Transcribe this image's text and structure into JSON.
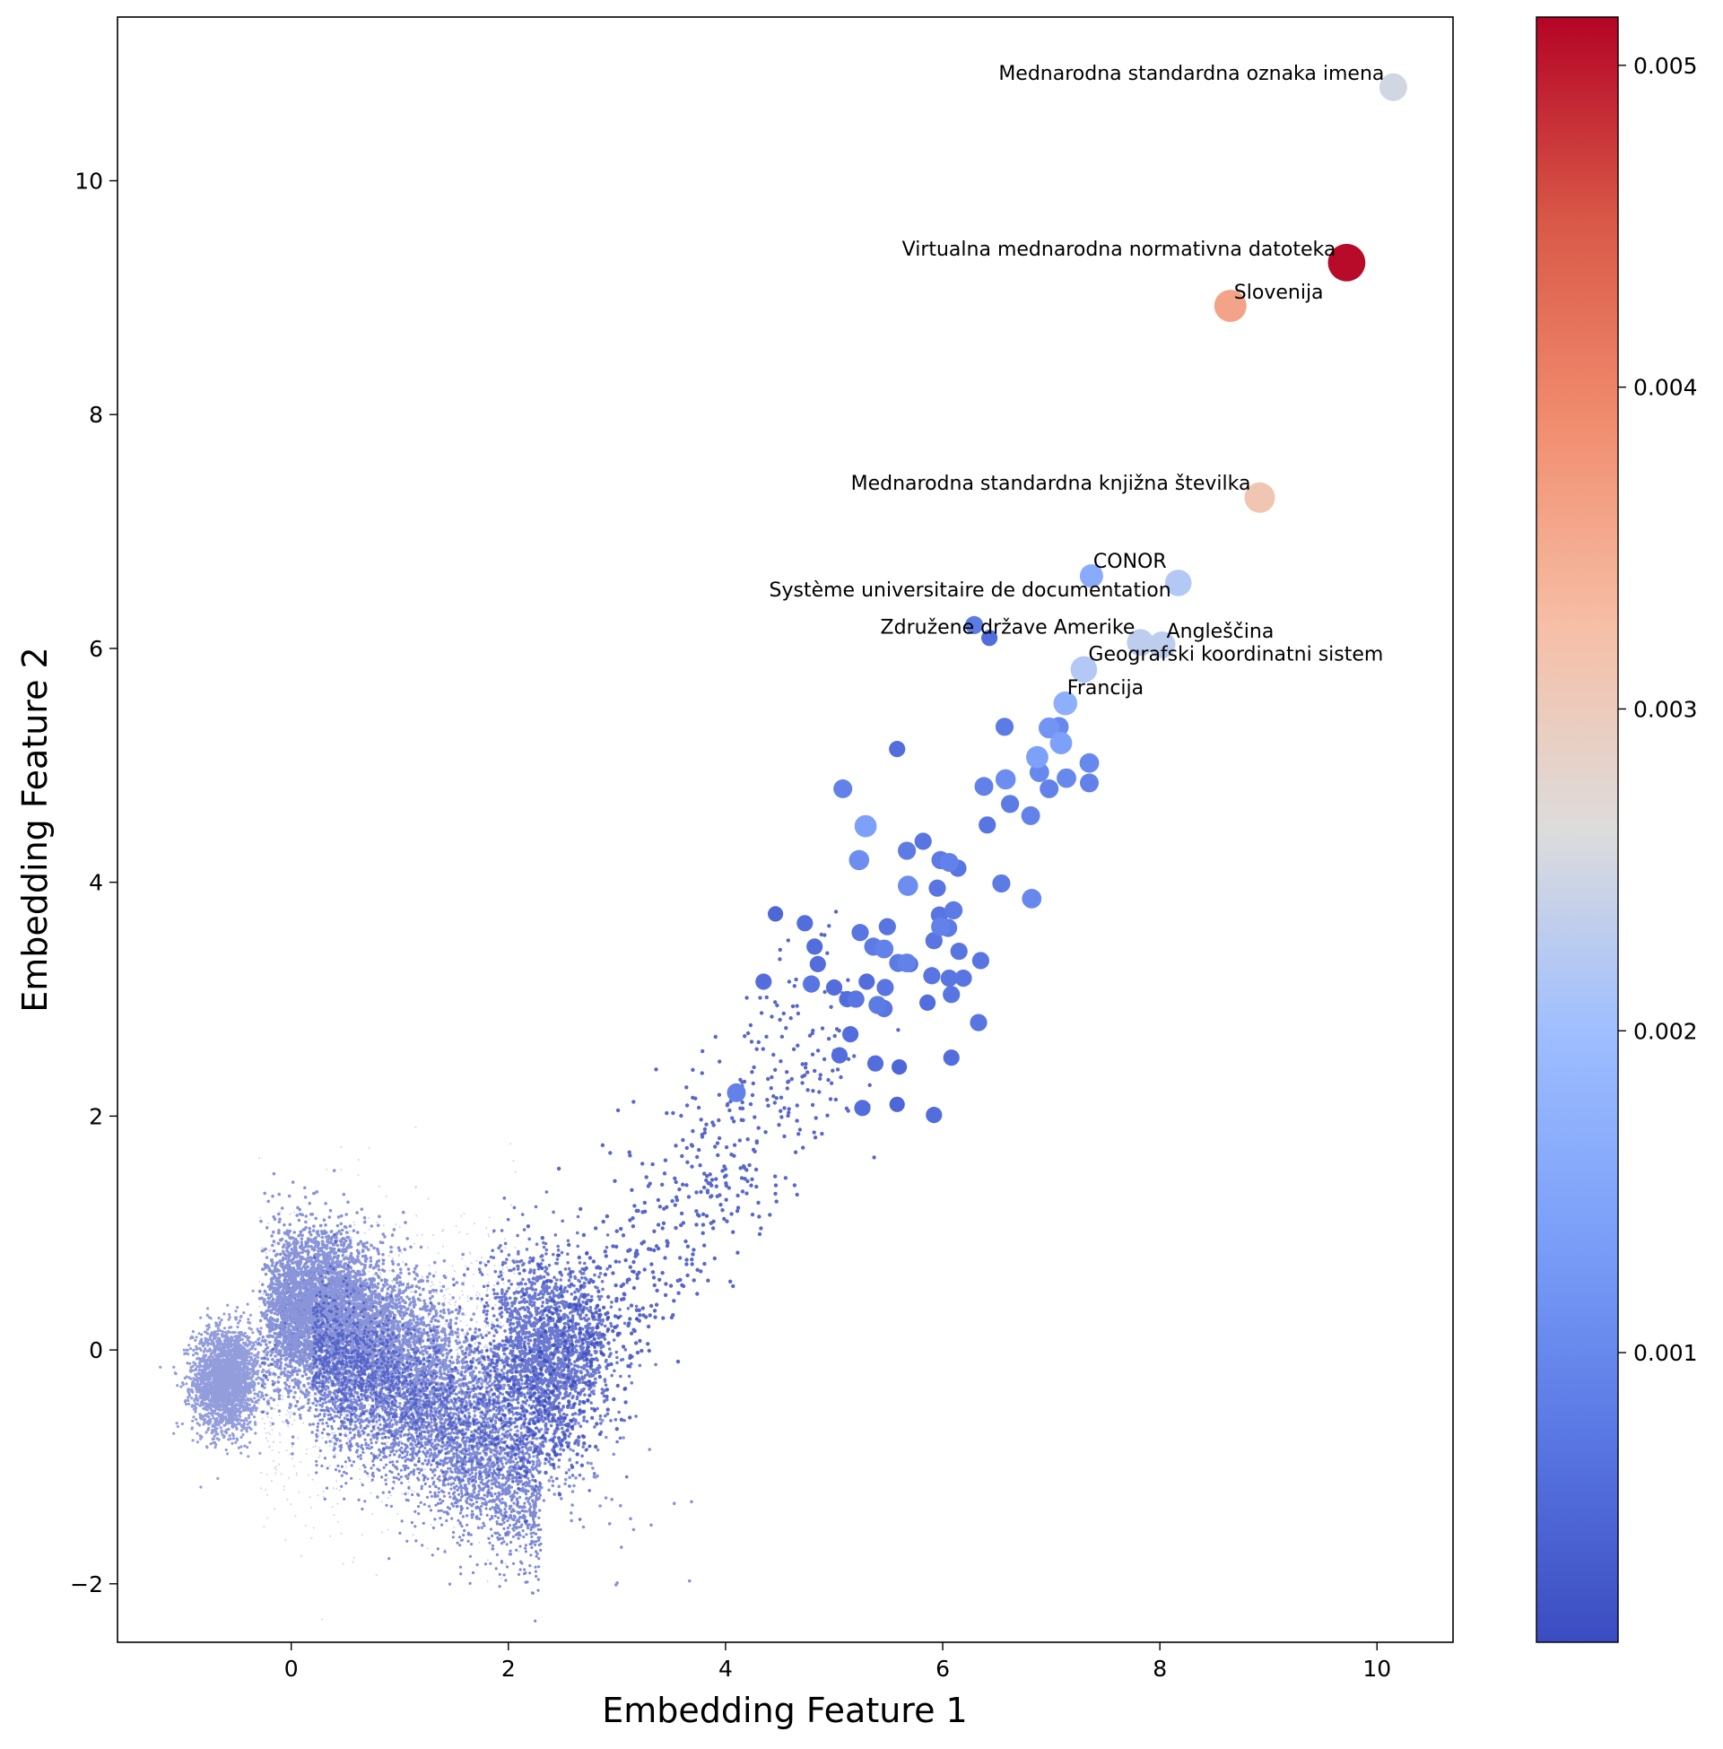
{
  "chart_data": {
    "type": "scatter",
    "xlabel": "Embedding Feature 1",
    "ylabel": "Embedding Feature 2",
    "xlim": [
      -1.6,
      10.7
    ],
    "ylim": [
      -2.5,
      11.4
    ],
    "xticks": [
      0,
      2,
      4,
      6,
      8,
      10
    ],
    "yticks": [
      -2,
      0,
      2,
      4,
      6,
      8,
      10
    ],
    "xtick_labels": [
      "0",
      "2",
      "4",
      "6",
      "8",
      "10"
    ],
    "ytick_labels": [
      "−2",
      "0",
      "2",
      "4",
      "6",
      "8",
      "10"
    ],
    "grid": false,
    "colormap": "coolwarm",
    "colorbar": {
      "label": "",
      "range": [
        0.0001,
        0.00515
      ],
      "ticks": [
        0.001,
        0.002,
        0.003,
        0.004,
        0.005
      ],
      "tick_labels": [
        "0.001",
        "0.002",
        "0.003",
        "0.004",
        "0.005"
      ]
    },
    "background_cloud_color": "#3b4cc0",
    "annotated_points": [
      {
        "label": "Mednarodna standardna oznaka imena",
        "x": 10.15,
        "y": 10.8,
        "value": 0.0025
      },
      {
        "label": "Virtualna mednarodna normativna datoteka",
        "x": 9.72,
        "y": 9.3,
        "value": 0.0051
      },
      {
        "label": "Slovenija",
        "x": 8.65,
        "y": 8.93,
        "value": 0.0036
      },
      {
        "label": "Mednarodna standardna knjižna številka",
        "x": 8.92,
        "y": 7.29,
        "value": 0.0031
      },
      {
        "label": "CONOR",
        "x": 7.37,
        "y": 6.62,
        "value": 0.0016
      },
      {
        "label": "Système universitaire de documentation",
        "x": 8.17,
        "y": 6.56,
        "value": 0.0022
      },
      {
        "label": "Združene države Amerike",
        "x": 7.82,
        "y": 6.05,
        "value": 0.0023
      },
      {
        "label": "Angleščina",
        "x": 8.02,
        "y": 6.03,
        "value": 0.0023
      },
      {
        "label": "Geografski koordinatni sistem",
        "x": 7.3,
        "y": 5.82,
        "value": 0.0022
      },
      {
        "label": "Francija",
        "x": 7.13,
        "y": 5.53,
        "value": 0.0017
      }
    ],
    "other_points": [
      {
        "x": 6.29,
        "y": 6.2,
        "value": 0.0008
      },
      {
        "x": 6.43,
        "y": 6.09,
        "value": 0.0006
      },
      {
        "x": 6.57,
        "y": 5.33,
        "value": 0.0008
      },
      {
        "x": 5.58,
        "y": 5.14,
        "value": 0.0006
      },
      {
        "x": 6.98,
        "y": 5.32,
        "value": 0.0012
      },
      {
        "x": 7.07,
        "y": 5.33,
        "value": 0.001
      },
      {
        "x": 7.09,
        "y": 5.19,
        "value": 0.0014
      },
      {
        "x": 6.87,
        "y": 5.07,
        "value": 0.0014
      },
      {
        "x": 7.35,
        "y": 5.02,
        "value": 0.001
      },
      {
        "x": 6.89,
        "y": 4.94,
        "value": 0.001
      },
      {
        "x": 6.58,
        "y": 4.88,
        "value": 0.0011
      },
      {
        "x": 7.14,
        "y": 4.89,
        "value": 0.001
      },
      {
        "x": 7.35,
        "y": 4.85,
        "value": 0.0009
      },
      {
        "x": 6.38,
        "y": 4.82,
        "value": 0.0009
      },
      {
        "x": 6.98,
        "y": 4.8,
        "value": 0.0009
      },
      {
        "x": 5.08,
        "y": 4.8,
        "value": 0.0009
      },
      {
        "x": 6.62,
        "y": 4.67,
        "value": 0.0008
      },
      {
        "x": 6.81,
        "y": 4.57,
        "value": 0.0009
      },
      {
        "x": 6.41,
        "y": 4.49,
        "value": 0.0007
      },
      {
        "x": 5.29,
        "y": 4.48,
        "value": 0.0014
      },
      {
        "x": 5.82,
        "y": 4.35,
        "value": 0.0007
      },
      {
        "x": 5.67,
        "y": 4.27,
        "value": 0.0008
      },
      {
        "x": 5.23,
        "y": 4.19,
        "value": 0.0011
      },
      {
        "x": 5.98,
        "y": 4.19,
        "value": 0.0008
      },
      {
        "x": 6.06,
        "y": 4.17,
        "value": 0.0009
      },
      {
        "x": 6.14,
        "y": 4.12,
        "value": 0.0007
      },
      {
        "x": 5.68,
        "y": 3.97,
        "value": 0.0011
      },
      {
        "x": 5.95,
        "y": 3.95,
        "value": 0.0007
      },
      {
        "x": 6.54,
        "y": 3.99,
        "value": 0.0008
      },
      {
        "x": 6.82,
        "y": 3.86,
        "value": 0.001
      },
      {
        "x": 6.1,
        "y": 3.76,
        "value": 0.0008
      },
      {
        "x": 5.97,
        "y": 3.72,
        "value": 0.0007
      },
      {
        "x": 5.98,
        "y": 3.62,
        "value": 0.0009
      },
      {
        "x": 6.05,
        "y": 3.61,
        "value": 0.0008
      },
      {
        "x": 5.49,
        "y": 3.62,
        "value": 0.0007
      },
      {
        "x": 5.24,
        "y": 3.57,
        "value": 0.0007
      },
      {
        "x": 5.92,
        "y": 3.5,
        "value": 0.0007
      },
      {
        "x": 5.36,
        "y": 3.45,
        "value": 0.0008
      },
      {
        "x": 5.46,
        "y": 3.43,
        "value": 0.0009
      },
      {
        "x": 6.15,
        "y": 3.41,
        "value": 0.0007
      },
      {
        "x": 5.59,
        "y": 3.31,
        "value": 0.0008
      },
      {
        "x": 5.67,
        "y": 3.31,
        "value": 0.0009
      },
      {
        "x": 6.35,
        "y": 3.33,
        "value": 0.0007
      },
      {
        "x": 5.9,
        "y": 3.2,
        "value": 0.0007
      },
      {
        "x": 6.06,
        "y": 3.18,
        "value": 0.0007
      },
      {
        "x": 6.19,
        "y": 3.18,
        "value": 0.0007
      },
      {
        "x": 5.47,
        "y": 3.1,
        "value": 0.0007
      },
      {
        "x": 4.79,
        "y": 3.13,
        "value": 0.0007
      },
      {
        "x": 6.08,
        "y": 3.04,
        "value": 0.0007
      },
      {
        "x": 5.2,
        "y": 3.0,
        "value": 0.0007
      },
      {
        "x": 5.4,
        "y": 2.95,
        "value": 0.0008
      },
      {
        "x": 5.46,
        "y": 2.92,
        "value": 0.0007
      },
      {
        "x": 6.33,
        "y": 2.8,
        "value": 0.0007
      },
      {
        "x": 4.1,
        "y": 2.2,
        "value": 0.0009
      },
      {
        "x": 5.26,
        "y": 2.07,
        "value": 0.0006
      },
      {
        "x": 5.92,
        "y": 2.01,
        "value": 0.0006
      },
      {
        "x": 5.58,
        "y": 2.1,
        "value": 0.0005
      },
      {
        "x": 6.08,
        "y": 2.5,
        "value": 0.0006
      },
      {
        "x": 4.35,
        "y": 3.15,
        "value": 0.0006
      },
      {
        "x": 4.73,
        "y": 3.65,
        "value": 0.0006
      },
      {
        "x": 4.82,
        "y": 3.45,
        "value": 0.0006
      },
      {
        "x": 4.85,
        "y": 3.3,
        "value": 0.0006
      },
      {
        "x": 5.0,
        "y": 3.1,
        "value": 0.0006
      },
      {
        "x": 5.15,
        "y": 2.7,
        "value": 0.0006
      },
      {
        "x": 5.05,
        "y": 2.52,
        "value": 0.0006
      },
      {
        "x": 5.38,
        "y": 2.45,
        "value": 0.0006
      },
      {
        "x": 5.6,
        "y": 2.42,
        "value": 0.0005
      },
      {
        "x": 5.3,
        "y": 3.15,
        "value": 0.0006
      },
      {
        "x": 5.7,
        "y": 3.3,
        "value": 0.0006
      },
      {
        "x": 5.86,
        "y": 2.97,
        "value": 0.0006
      },
      {
        "x": 5.12,
        "y": 3.0,
        "value": 0.0006
      },
      {
        "x": 4.46,
        "y": 3.73,
        "value": 0.0005
      }
    ]
  }
}
